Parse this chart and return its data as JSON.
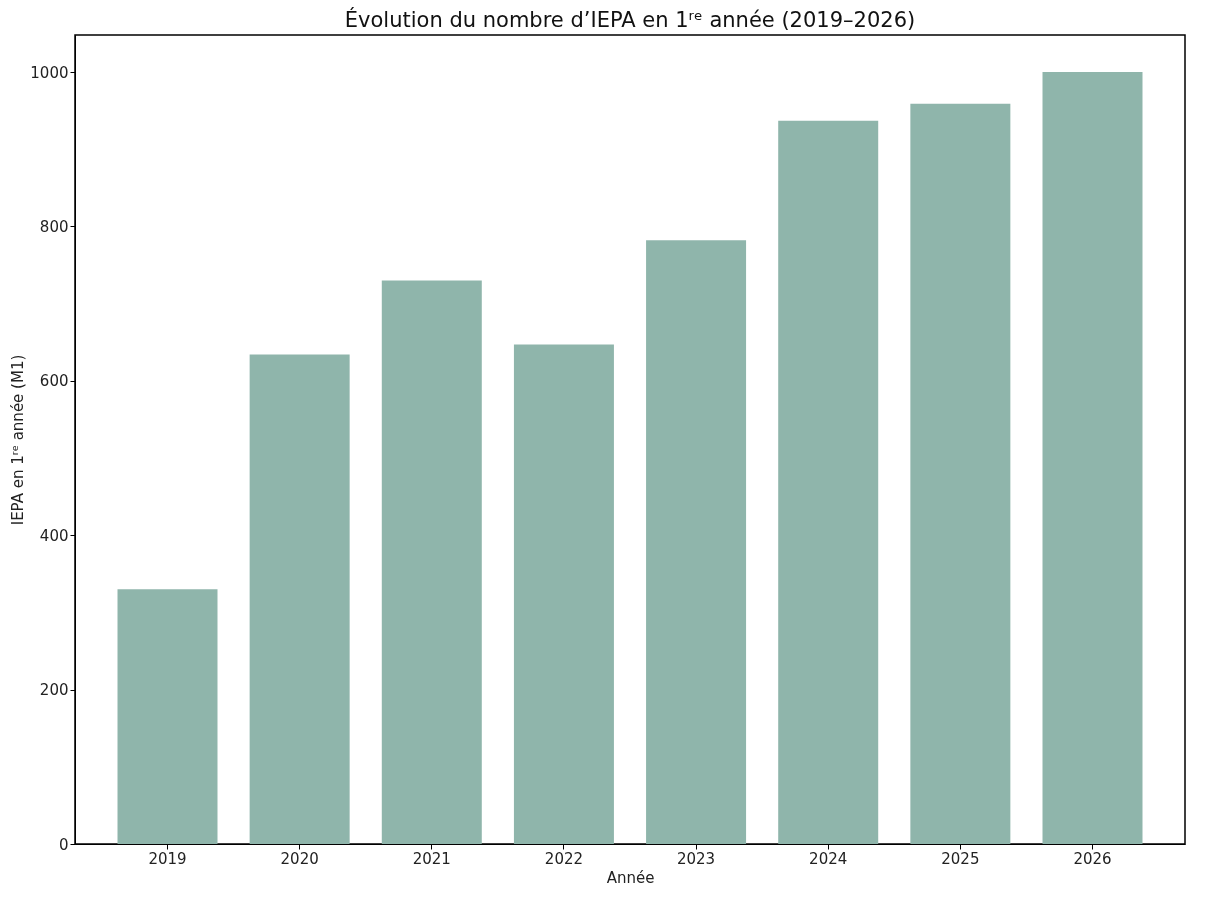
{
  "chart_data": {
    "type": "bar",
    "title": "Évolution du nombre d’IEPA en 1ʳᵉ année (2019–2026)",
    "xlabel": "Année",
    "ylabel": "IEPA en 1ʳᵉ année (M1)",
    "categories": [
      "2019",
      "2020",
      "2021",
      "2022",
      "2023",
      "2024",
      "2025",
      "2026"
    ],
    "values": [
      330,
      634,
      730,
      647,
      782,
      937,
      959,
      1000
    ],
    "color": "#8fb5ab",
    "ylim": [
      0,
      1048
    ],
    "yticks": [
      0,
      200,
      400,
      600,
      800,
      1000
    ],
    "grid": false
  }
}
